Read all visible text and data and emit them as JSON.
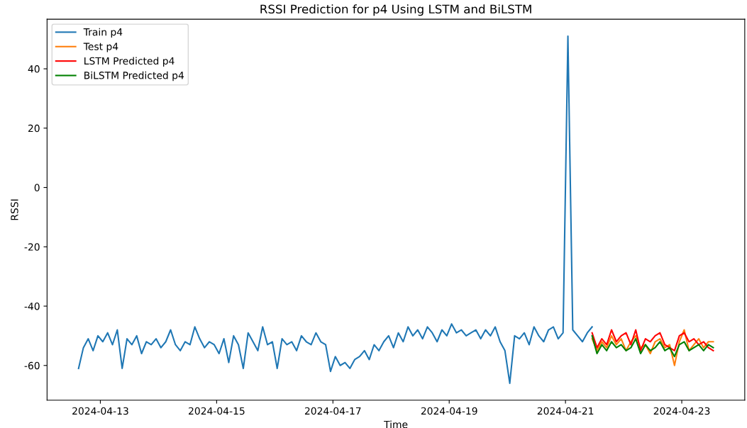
{
  "chart_data": {
    "type": "line",
    "title": "RSSI Prediction for p4 Using LSTM and BiLSTM",
    "xlabel": "Time",
    "ylabel": "RSSI",
    "xlim": [
      "2024-04-12T02:00",
      "2024-04-24T02:00"
    ],
    "xticks": [
      {
        "value": "2024-04-13",
        "label": "2024-04-13"
      },
      {
        "value": "2024-04-15",
        "label": "2024-04-15"
      },
      {
        "value": "2024-04-17",
        "label": "2024-04-17"
      },
      {
        "value": "2024-04-19",
        "label": "2024-04-19"
      },
      {
        "value": "2024-04-21",
        "label": "2024-04-21"
      },
      {
        "value": "2024-04-23",
        "label": "2024-04-23"
      }
    ],
    "ylim": [
      -71.7,
      56.7
    ],
    "yticks": [
      -60,
      -40,
      -20,
      0,
      20,
      40
    ],
    "grid": false,
    "legend": "top left",
    "series": [
      {
        "name": "Train p4",
        "color": "#1f77b4",
        "x": [
          "2024-04-12T15:00",
          "2024-04-12T17:00",
          "2024-04-12T19:00",
          "2024-04-12T21:00",
          "2024-04-12T23:00",
          "2024-04-13T01:00",
          "2024-04-13T03:00",
          "2024-04-13T05:00",
          "2024-04-13T07:00",
          "2024-04-13T09:00",
          "2024-04-13T11:00",
          "2024-04-13T13:00",
          "2024-04-13T15:00",
          "2024-04-13T17:00",
          "2024-04-13T19:00",
          "2024-04-13T21:00",
          "2024-04-13T23:00",
          "2024-04-14T01:00",
          "2024-04-14T03:00",
          "2024-04-14T05:00",
          "2024-04-14T07:00",
          "2024-04-14T09:00",
          "2024-04-14T11:00",
          "2024-04-14T13:00",
          "2024-04-14T15:00",
          "2024-04-14T17:00",
          "2024-04-14T19:00",
          "2024-04-14T21:00",
          "2024-04-14T23:00",
          "2024-04-15T01:00",
          "2024-04-15T03:00",
          "2024-04-15T05:00",
          "2024-04-15T07:00",
          "2024-04-15T09:00",
          "2024-04-15T11:00",
          "2024-04-15T13:00",
          "2024-04-15T15:00",
          "2024-04-15T17:00",
          "2024-04-15T19:00",
          "2024-04-15T21:00",
          "2024-04-15T23:00",
          "2024-04-16T01:00",
          "2024-04-16T03:00",
          "2024-04-16T05:00",
          "2024-04-16T07:00",
          "2024-04-16T09:00",
          "2024-04-16T11:00",
          "2024-04-16T13:00",
          "2024-04-16T15:00",
          "2024-04-16T17:00",
          "2024-04-16T19:00",
          "2024-04-16T21:00",
          "2024-04-16T23:00",
          "2024-04-17T01:00",
          "2024-04-17T03:00",
          "2024-04-17T05:00",
          "2024-04-17T07:00",
          "2024-04-17T09:00",
          "2024-04-17T11:00",
          "2024-04-17T13:00",
          "2024-04-17T15:00",
          "2024-04-17T17:00",
          "2024-04-17T19:00",
          "2024-04-17T21:00",
          "2024-04-17T23:00",
          "2024-04-18T01:00",
          "2024-04-18T03:00",
          "2024-04-18T05:00",
          "2024-04-18T07:00",
          "2024-04-18T09:00",
          "2024-04-18T11:00",
          "2024-04-18T13:00",
          "2024-04-18T15:00",
          "2024-04-18T17:00",
          "2024-04-18T19:00",
          "2024-04-18T21:00",
          "2024-04-18T23:00",
          "2024-04-19T01:00",
          "2024-04-19T03:00",
          "2024-04-19T05:00",
          "2024-04-19T07:00",
          "2024-04-19T09:00",
          "2024-04-19T11:00",
          "2024-04-19T13:00",
          "2024-04-19T15:00",
          "2024-04-19T17:00",
          "2024-04-19T19:00",
          "2024-04-19T21:00",
          "2024-04-19T23:00",
          "2024-04-20T01:00",
          "2024-04-20T03:00",
          "2024-04-20T05:00",
          "2024-04-20T07:00",
          "2024-04-20T09:00",
          "2024-04-20T11:00",
          "2024-04-20T13:00",
          "2024-04-20T15:00",
          "2024-04-20T17:00",
          "2024-04-20T19:00",
          "2024-04-20T21:00",
          "2024-04-20T23:00",
          "2024-04-21T01:00",
          "2024-04-21T03:00",
          "2024-04-21T05:00",
          "2024-04-21T07:00",
          "2024-04-21T09:00",
          "2024-04-21T11:00"
        ],
        "values": [
          -61,
          -54,
          -51,
          -55,
          -50,
          -52,
          -49,
          -53,
          -48,
          -61,
          -51,
          -53,
          -50,
          -56,
          -52,
          -53,
          -51,
          -54,
          -52,
          -48,
          -53,
          -55,
          -52,
          -53,
          -47,
          -51,
          -54,
          -52,
          -53,
          -56,
          -51,
          -59,
          -50,
          -53,
          -61,
          -49,
          -52,
          -55,
          -47,
          -53,
          -52,
          -61,
          -51,
          -53,
          -52,
          -55,
          -50,
          -52,
          -53,
          -49,
          -52,
          -53,
          -62,
          -57,
          -60,
          -59,
          -61,
          -58,
          -57,
          -55,
          -58,
          -53,
          -55,
          -52,
          -50,
          -54,
          -49,
          -52,
          -47,
          -50,
          -48,
          -51,
          -47,
          -49,
          -52,
          -48,
          -50,
          -46,
          -49,
          -48,
          -50,
          -49,
          -48,
          -51,
          -48,
          -50,
          -47,
          -52,
          -55,
          -66,
          -50,
          -51,
          -49,
          -53,
          -47,
          -50,
          -52,
          -48,
          -47,
          -51,
          -49,
          51,
          -48,
          -50,
          -52,
          -49,
          -47
        ]
      },
      {
        "name": "Test p4",
        "color": "#ff7f0e",
        "x": [
          "2024-04-21T11:00",
          "2024-04-21T13:00",
          "2024-04-21T15:00",
          "2024-04-21T17:00",
          "2024-04-21T19:00",
          "2024-04-21T21:00",
          "2024-04-21T23:00",
          "2024-04-22T01:00",
          "2024-04-22T03:00",
          "2024-04-22T05:00",
          "2024-04-22T07:00",
          "2024-04-22T09:00",
          "2024-04-22T11:00",
          "2024-04-22T13:00",
          "2024-04-22T15:00",
          "2024-04-22T17:00",
          "2024-04-22T19:00",
          "2024-04-22T21:00",
          "2024-04-22T23:00",
          "2024-04-23T01:00",
          "2024-04-23T03:00",
          "2024-04-23T05:00",
          "2024-04-23T07:00",
          "2024-04-23T09:00",
          "2024-04-23T11:00",
          "2024-04-23T13:00"
        ],
        "values": [
          -51,
          -55,
          -52,
          -54,
          -50,
          -53,
          -51,
          -55,
          -52,
          -50,
          -54,
          -53,
          -56,
          -52,
          -51,
          -54,
          -53,
          -60,
          -52,
          -48,
          -55,
          -53,
          -51,
          -54,
          -52,
          -52
        ]
      },
      {
        "name": "LSTM Predicted p4",
        "color": "#ff0000",
        "x": [
          "2024-04-21T11:00",
          "2024-04-21T13:00",
          "2024-04-21T15:00",
          "2024-04-21T17:00",
          "2024-04-21T19:00",
          "2024-04-21T21:00",
          "2024-04-21T23:00",
          "2024-04-22T01:00",
          "2024-04-22T03:00",
          "2024-04-22T05:00",
          "2024-04-22T07:00",
          "2024-04-22T09:00",
          "2024-04-22T11:00",
          "2024-04-22T13:00",
          "2024-04-22T15:00",
          "2024-04-22T17:00",
          "2024-04-22T19:00",
          "2024-04-22T21:00",
          "2024-04-22T23:00",
          "2024-04-23T01:00",
          "2024-04-23T03:00",
          "2024-04-23T05:00",
          "2024-04-23T07:00",
          "2024-04-23T09:00",
          "2024-04-23T11:00",
          "2024-04-23T13:00"
        ],
        "values": [
          -49,
          -54,
          -51,
          -53,
          -48,
          -52,
          -50,
          -49,
          -53,
          -48,
          -55,
          -51,
          -52,
          -50,
          -49,
          -53,
          -54,
          -55,
          -50,
          -49,
          -52,
          -51,
          -53,
          -52,
          -54,
          -55
        ]
      },
      {
        "name": "BiLSTM Predicted p4",
        "color": "#008000",
        "x": [
          "2024-04-21T11:00",
          "2024-04-21T13:00",
          "2024-04-21T15:00",
          "2024-04-21T17:00",
          "2024-04-21T19:00",
          "2024-04-21T21:00",
          "2024-04-21T23:00",
          "2024-04-22T01:00",
          "2024-04-22T03:00",
          "2024-04-22T05:00",
          "2024-04-22T07:00",
          "2024-04-22T09:00",
          "2024-04-22T11:00",
          "2024-04-22T13:00",
          "2024-04-22T15:00",
          "2024-04-22T17:00",
          "2024-04-22T19:00",
          "2024-04-22T21:00",
          "2024-04-22T23:00",
          "2024-04-23T01:00",
          "2024-04-23T03:00",
          "2024-04-23T05:00",
          "2024-04-23T07:00",
          "2024-04-23T09:00",
          "2024-04-23T11:00",
          "2024-04-23T13:00"
        ],
        "values": [
          -50,
          -56,
          -53,
          -55,
          -52,
          -54,
          -53,
          -55,
          -54,
          -51,
          -56,
          -53,
          -55,
          -54,
          -52,
          -55,
          -54,
          -57,
          -53,
          -52,
          -55,
          -54,
          -53,
          -55,
          -53,
          -54
        ]
      }
    ]
  }
}
